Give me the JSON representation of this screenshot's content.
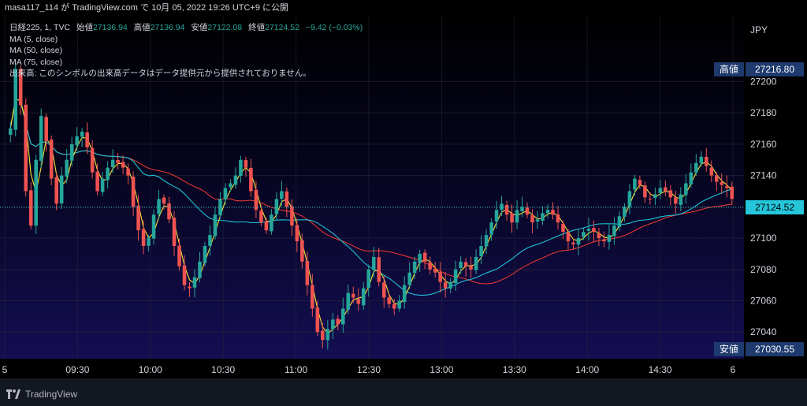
{
  "header": {
    "publish_line": "masa117_114 が TradingView.com で 10月 05, 2022 19:26 UTC+9 に公開"
  },
  "legend": {
    "symbol_line": "日経225, 1, TVC",
    "open_label": "始値",
    "open_value": "27136.94",
    "high_label": "高値",
    "high_value": "27136.94",
    "low_label": "安値",
    "low_value": "27122.08",
    "close_label": "終値",
    "close_value": "27124.52",
    "change": "−9.42 (−0.03%)",
    "ma1": "MA (5, close)",
    "ma2": "MA (50, close)",
    "ma3": "MA (75, close)",
    "volume_note": "出来高: このシンボルの出来高データはデータ提供元から提供されておりません。"
  },
  "axis": {
    "currency": "JPY",
    "high_tag_label": "高値",
    "high_tag_value": "27216.80",
    "low_tag_label": "安値",
    "low_tag_value": "27030.55",
    "last_price": "27124.52"
  },
  "brand": {
    "name": "TradingView"
  },
  "colors": {
    "up": "#26a69a",
    "down": "#ef5350",
    "ma5": "#f5e23b",
    "ma50": "#1ec3d6",
    "ma75": "#e5372f",
    "last_price_bg": "#26c6da"
  },
  "chart_data": {
    "type": "candlestick",
    "interval": "1 minute",
    "y_ticks": [
      27040,
      27060,
      27080,
      27100,
      27120,
      27140,
      27160,
      27180,
      27200
    ],
    "ylim": [
      27023,
      27242
    ],
    "x_tick_labels": [
      "5",
      "09:30",
      "10:00",
      "10:30",
      "11:00",
      "12:30",
      "13:00",
      "13:30",
      "14:00",
      "14:30",
      "6"
    ],
    "grid": true,
    "legend_position": "top-left",
    "closes": [
      27170,
      27208,
      27185,
      27130,
      27108,
      27150,
      27178,
      27162,
      27138,
      27122,
      27140,
      27150,
      27160,
      27165,
      27168,
      27158,
      27142,
      27130,
      27138,
      27145,
      27150,
      27148,
      27145,
      27140,
      27120,
      27105,
      27095,
      27100,
      27115,
      27125,
      27122,
      27112,
      27095,
      27082,
      27070,
      27068,
      27075,
      27085,
      27095,
      27102,
      27115,
      27125,
      27132,
      27135,
      27140,
      27150,
      27145,
      27130,
      27118,
      27110,
      27105,
      27115,
      27125,
      27130,
      27120,
      27108,
      27098,
      27085,
      27070,
      27055,
      27040,
      27035,
      27042,
      27048,
      27045,
      27055,
      27065,
      27062,
      27058,
      27068,
      27080,
      27088,
      27072,
      27062,
      27058,
      27055,
      27060,
      27070,
      27078,
      27085,
      27090,
      27085,
      27080,
      27078,
      27072,
      27068,
      27072,
      27080,
      27085,
      27082,
      27080,
      27088,
      27095,
      27102,
      27110,
      27118,
      27122,
      27115,
      27110,
      27118,
      27120,
      27115,
      27110,
      27112,
      27116,
      27118,
      27115,
      27110,
      27104,
      27098,
      27096,
      27100,
      27104,
      27106,
      27104,
      27100,
      27098,
      27102,
      27108,
      27114,
      27120,
      27130,
      27138,
      27134,
      27126,
      27125,
      27128,
      27132,
      27130,
      27126,
      27122,
      27128,
      27135,
      27142,
      27148,
      27152,
      27146,
      27140,
      27136,
      27134,
      27132,
      27125
    ],
    "ma5_note": "short moving average",
    "ma50_note": "medium moving average",
    "ma75_note": "long moving average"
  }
}
